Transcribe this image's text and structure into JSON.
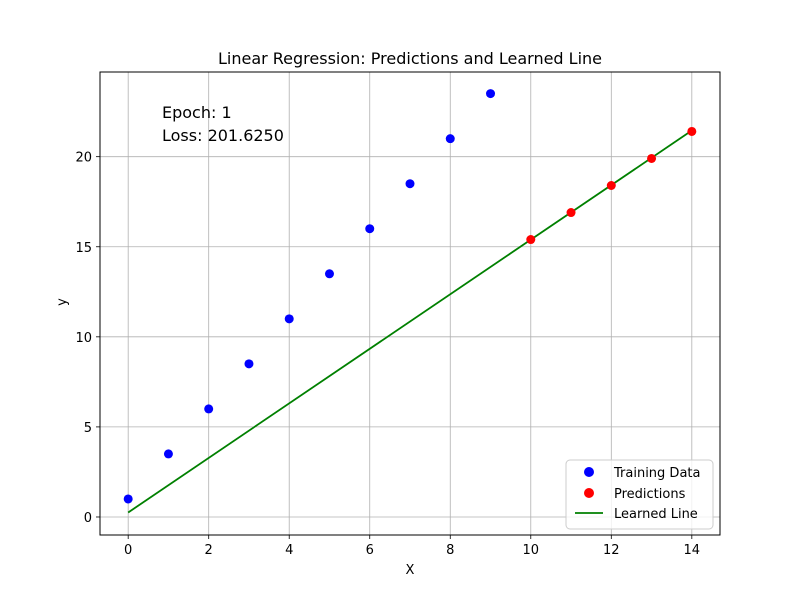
{
  "chart_data": {
    "type": "scatter",
    "title": "Linear Regression: Predictions and Learned Line",
    "xlabel": "X",
    "ylabel": "y",
    "xlim": [
      -0.7,
      14.7
    ],
    "ylim": [
      -1.0,
      24.7
    ],
    "xticks": [
      0,
      2,
      4,
      6,
      8,
      10,
      12,
      14
    ],
    "yticks": [
      0,
      5,
      10,
      15,
      20
    ],
    "grid": true,
    "legend_position": "lower-right",
    "annotations": [
      "Epoch: 1",
      "Loss: 201.6250"
    ],
    "series": [
      {
        "name": "Training Data",
        "kind": "scatter",
        "color": "#0000ff",
        "x": [
          0,
          1,
          2,
          3,
          4,
          5,
          6,
          7,
          8,
          9
        ],
        "y": [
          1,
          3.5,
          6,
          8.5,
          11,
          13.5,
          16,
          18.5,
          21,
          23.5
        ]
      },
      {
        "name": "Predictions",
        "kind": "scatter",
        "color": "#ff0000",
        "x": [
          10,
          11,
          12,
          13,
          14
        ],
        "y": [
          15.4,
          16.9,
          18.4,
          19.9,
          21.4
        ]
      },
      {
        "name": "Learned Line",
        "kind": "line",
        "color": "#008000",
        "x": [
          0,
          14
        ],
        "y": [
          0.25,
          21.45
        ]
      }
    ]
  }
}
